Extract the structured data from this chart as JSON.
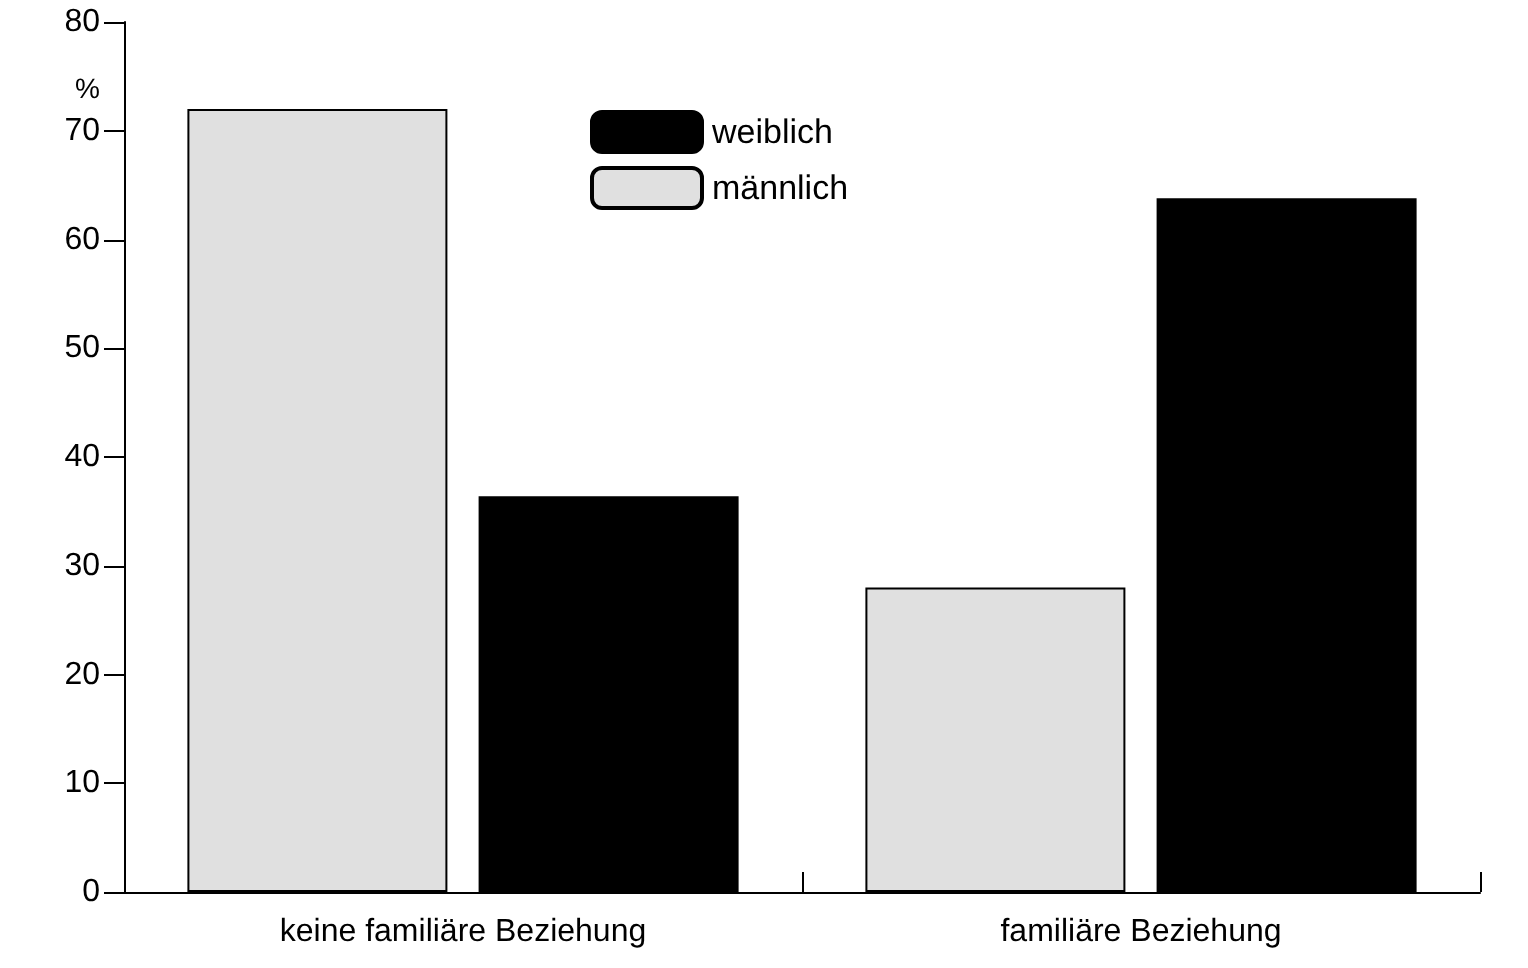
{
  "chart_data": {
    "type": "bar",
    "ylabel": "%",
    "categories": [
      "keine familiäre Beziehung",
      "familiäre Beziehung"
    ],
    "series": [
      {
        "name": "männlich",
        "color": "#e0e0e0",
        "values": [
          72,
          28
        ]
      },
      {
        "name": "weiblich",
        "color": "#000000",
        "values": [
          36.4,
          63.8
        ]
      }
    ],
    "ylim": [
      0,
      80
    ],
    "yticks": [
      0,
      10,
      20,
      30,
      40,
      50,
      60,
      70,
      80
    ],
    "grid": false,
    "legend": "top"
  }
}
